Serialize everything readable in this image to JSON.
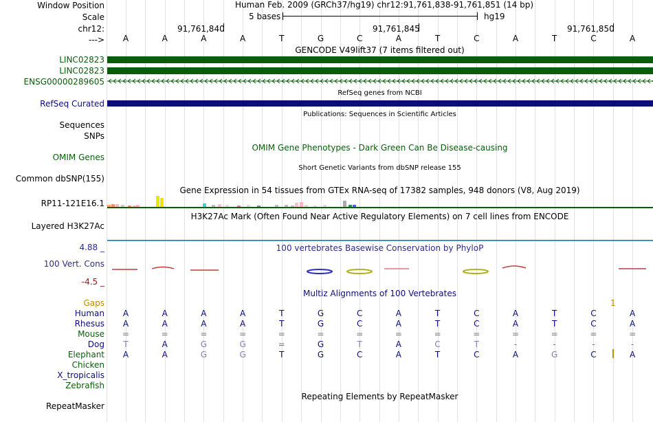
{
  "header": {
    "window_position_label": "Window Position",
    "scale_label": "Scale",
    "chr_label": "chr12:",
    "strand_label": "--->",
    "assembly_text": "Human Feb. 2009 (GRCh37/hg19)   chr12:91,761,838-91,761,851 (14 bp)",
    "scale_text": "5 bases",
    "scale_db": "hg19",
    "coords": [
      "91,761,840",
      "91,761,845",
      "91,761,850"
    ]
  },
  "bases": [
    "A",
    "A",
    "A",
    "A",
    "T",
    "G",
    "C",
    "A",
    "T",
    "C",
    "A",
    "T",
    "C",
    "A"
  ],
  "gencode": {
    "title": "GENCODE V49lift37 (7 items filtered out)",
    "items": [
      "LINC02823",
      "LINC02823",
      "ENSG00000289605"
    ],
    "color": "#0a5c0a"
  },
  "refseq": {
    "title": "RefSeq genes from NCBI",
    "label": "RefSeq Curated",
    "color": "#0c0c78"
  },
  "publications": {
    "title": "Publications: Sequences in Scientific Articles",
    "labels": [
      "Sequences",
      "SNPs"
    ]
  },
  "omim": {
    "title": "OMIM Gene Phenotypes - Dark Green Can Be Disease-causing",
    "label": "OMIM Genes"
  },
  "dbsnp": {
    "title": "Short Genetic Variants from dbSNP release 155",
    "label": "Common dbSNP(155)"
  },
  "gtex": {
    "title": "Gene Expression in 54 tissues from GTEx RNA-seq of 17382 samples, 948 donors (V8, Aug 2019)",
    "label": "RP11-121E16.1"
  },
  "h3k27ac": {
    "title": "H3K27Ac Mark (Often Found Near Active Regulatory Elements) on 7 cell lines from ENCODE",
    "label": "Layered H3K27Ac"
  },
  "phylop": {
    "title": "100 vertebrates Basewise Conservation by PhyloP",
    "label": "100 Vert. Cons",
    "max": "4.88 _",
    "min": "-4.5 _"
  },
  "multiz": {
    "title": "Multiz Alignments of 100 Vertebrates",
    "gaps_label": "Gaps",
    "gap_marker": "1",
    "species": [
      {
        "name": "Human",
        "seq": [
          "A",
          "A",
          "A",
          "A",
          "T",
          "G",
          "C",
          "A",
          "T",
          "C",
          "A",
          "T",
          "C",
          "A"
        ]
      },
      {
        "name": "Rhesus",
        "seq": [
          "A",
          "A",
          "A",
          "A",
          "T",
          "G",
          "C",
          "A",
          "T",
          "C",
          "A",
          "T",
          "C",
          "A"
        ]
      },
      {
        "name": "Mouse",
        "seq": [
          "=",
          "=",
          "=",
          "=",
          "=",
          "=",
          "=",
          "=",
          "=",
          "=",
          "=",
          "=",
          "=",
          "="
        ]
      },
      {
        "name": "Dog",
        "seq": [
          "T",
          "A",
          "G",
          "G",
          "=",
          "G",
          "T",
          "A",
          "C",
          "T",
          "-",
          "-",
          "-",
          "-"
        ]
      },
      {
        "name": "Elephant",
        "seq": [
          "A",
          "A",
          "G",
          "G",
          "T",
          "G",
          "C",
          "A",
          "T",
          "C",
          "A",
          "G",
          "C",
          "A"
        ]
      },
      {
        "name": "Chicken",
        "seq": []
      },
      {
        "name": "X_tropicalis",
        "seq": []
      },
      {
        "name": "Zebrafish",
        "seq": []
      }
    ]
  },
  "repeatmasker": {
    "title": "Repeating Elements by RepeatMasker",
    "label": "RepeatMasker"
  }
}
